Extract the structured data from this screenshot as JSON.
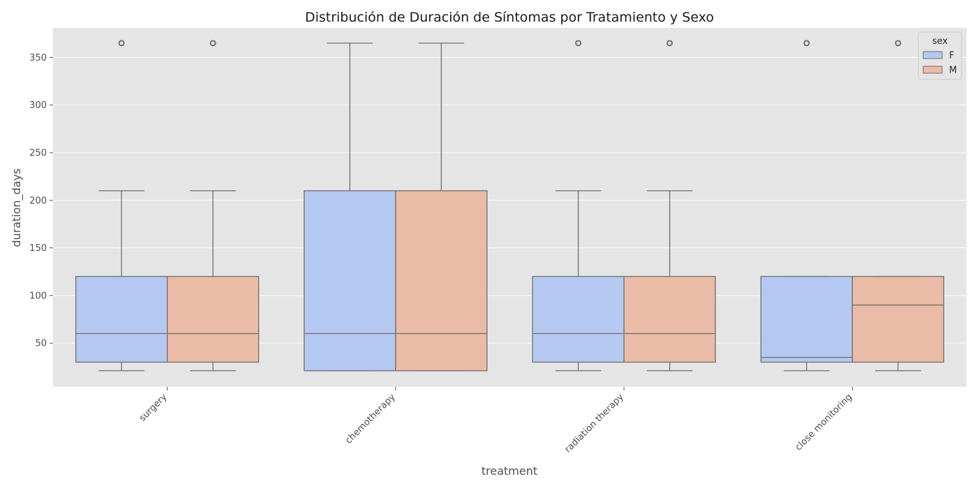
{
  "chart_data": {
    "type": "boxplot",
    "title": "Distribución de Duración de Síntomas por Tratamiento y Sexo",
    "xlabel": "treatment",
    "ylabel": "duration_days",
    "categories": [
      "surgery",
      "chemotherapy",
      "radiation therapy",
      "close monitoring"
    ],
    "ylim": [
      4,
      381
    ],
    "yticks": [
      50,
      100,
      150,
      200,
      250,
      300,
      350
    ],
    "grid": true,
    "legend": {
      "title": "sex",
      "position": "top-right"
    },
    "series": [
      {
        "name": "F",
        "color": "#b5c8f2",
        "boxes": [
          {
            "whisker_low": 21,
            "q1": 30,
            "median": 60,
            "q3": 120,
            "whisker_high": 210,
            "outliers": [
              365
            ]
          },
          {
            "whisker_low": 21,
            "q1": 21,
            "median": 60,
            "q3": 210,
            "whisker_high": 365,
            "outliers": []
          },
          {
            "whisker_low": 21,
            "q1": 30,
            "median": 60,
            "q3": 120,
            "whisker_high": 210,
            "outliers": [
              365
            ]
          },
          {
            "whisker_low": 21,
            "q1": 30,
            "median": 35,
            "q3": 120,
            "whisker_high": 120,
            "outliers": [
              365
            ]
          }
        ]
      },
      {
        "name": "M",
        "color": "#eabba6",
        "boxes": [
          {
            "whisker_low": 21,
            "q1": 30,
            "median": 60,
            "q3": 120,
            "whisker_high": 210,
            "outliers": [
              365
            ]
          },
          {
            "whisker_low": 21,
            "q1": 21,
            "median": 60,
            "q3": 210,
            "whisker_high": 365,
            "outliers": []
          },
          {
            "whisker_low": 21,
            "q1": 30,
            "median": 60,
            "q3": 120,
            "whisker_high": 210,
            "outliers": [
              365
            ]
          },
          {
            "whisker_low": 21,
            "q1": 30,
            "median": 90,
            "q3": 120,
            "whisker_high": 120,
            "outliers": [
              365
            ]
          }
        ]
      }
    ]
  }
}
